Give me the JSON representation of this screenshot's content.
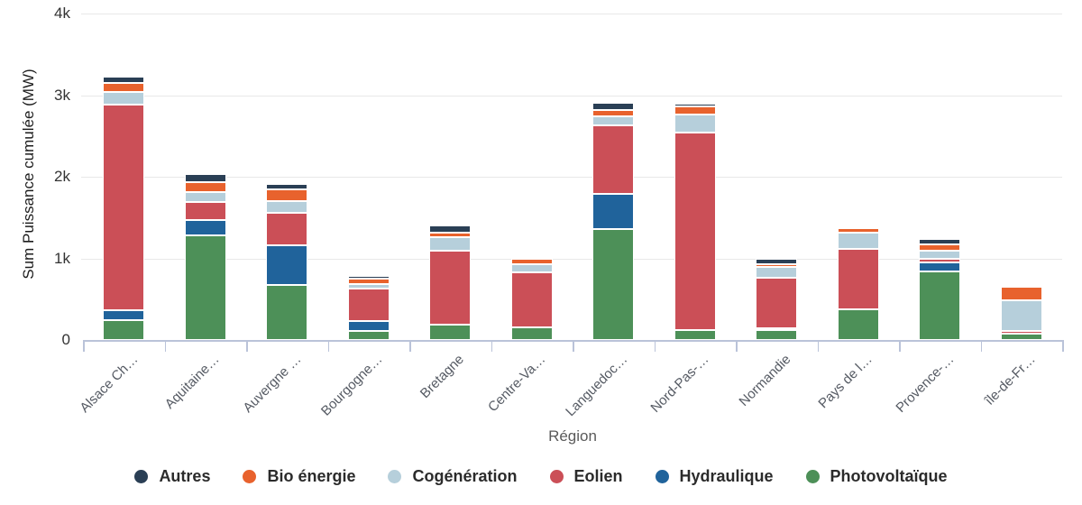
{
  "yaxis": {
    "title": "Sum Puissance cumulée (MW)",
    "tick_labels": [
      "4k",
      "3k",
      "2k",
      "1k",
      "0"
    ],
    "tick_values": [
      4000,
      3000,
      2000,
      1000,
      0
    ]
  },
  "xaxis": {
    "title": "Région"
  },
  "legend": [
    {
      "label": "Autres",
      "color": "#2a3f55"
    },
    {
      "label": "Bio énergie",
      "color": "#e8622d"
    },
    {
      "label": "Cogénération",
      "color": "#b6cfdb"
    },
    {
      "label": "Eolien",
      "color": "#cb4f57"
    },
    {
      "label": "Hydraulique",
      "color": "#20639b"
    },
    {
      "label": "Photovoltaïque",
      "color": "#4d9058"
    }
  ],
  "chart_data": {
    "type": "bar",
    "stacked": true,
    "title": "",
    "xlabel": "Région",
    "ylabel": "Sum Puissance cumulée (MW)",
    "ylim": [
      0,
      4000
    ],
    "grid": true,
    "legend_position": "bottom",
    "categories": [
      "Alsace Ch…",
      "Aquitaine…",
      "Auvergne …",
      "Bourgogne…",
      "Bretagne",
      "Centre-Va…",
      "Languedoc…",
      "Nord-Pas-…",
      "Normandie",
      "Pays de l…",
      "Provence-…",
      "île-de-Fr…"
    ],
    "stack_order_bottom_to_top": [
      "Photovoltaïque",
      "Hydraulique",
      "Eolien",
      "Cogénération",
      "Bio énergie",
      "Autres"
    ],
    "series": [
      {
        "name": "Photovoltaïque",
        "color": "#4d9058",
        "values": [
          240,
          1280,
          675,
          115,
          190,
          160,
          1360,
          125,
          120,
          380,
          835,
          75
        ]
      },
      {
        "name": "Hydraulique",
        "color": "#20639b",
        "values": [
          120,
          195,
          480,
          120,
          0,
          0,
          430,
          0,
          25,
          0,
          110,
          0
        ]
      },
      {
        "name": "Eolien",
        "color": "#cb4f57",
        "values": [
          2520,
          220,
          405,
          390,
          900,
          670,
          845,
          2420,
          620,
          740,
          45,
          40
        ]
      },
      {
        "name": "Cogénération",
        "color": "#b6cfdb",
        "values": [
          160,
          120,
          145,
          65,
          170,
          100,
          105,
          215,
          135,
          190,
          100,
          370
        ]
      },
      {
        "name": "Bio énergie",
        "color": "#e8622d",
        "values": [
          110,
          120,
          140,
          65,
          60,
          70,
          80,
          100,
          25,
          60,
          85,
          165
        ]
      },
      {
        "name": "Autres",
        "color": "#2a3f55",
        "values": [
          75,
          100,
          65,
          35,
          80,
          20,
          85,
          30,
          75,
          0,
          65,
          0
        ]
      }
    ],
    "totals": [
      3225,
      2035,
      1910,
      790,
      1400,
      1020,
      2905,
      2890,
      1000,
      1370,
      1240,
      650
    ]
  }
}
